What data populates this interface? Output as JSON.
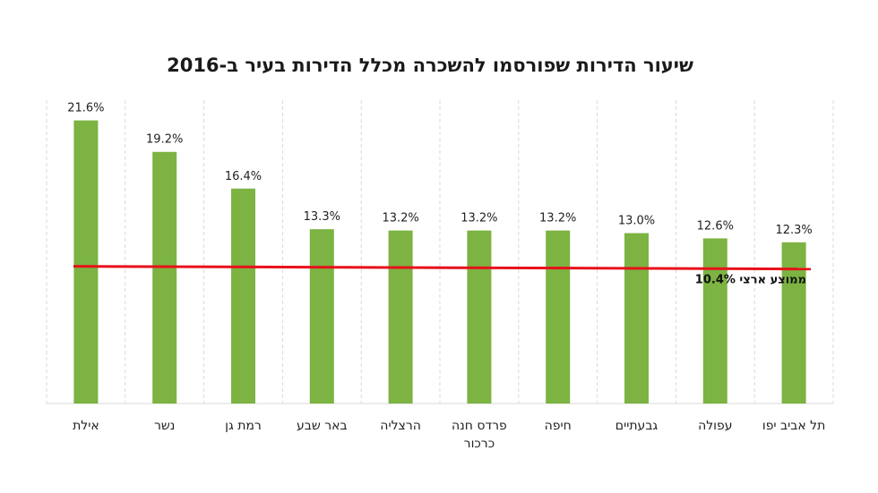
{
  "chart_data": {
    "type": "bar",
    "title": "שיעור הדירות שפורסמו להשכרה מכלל הדירות בעיר ב-2016",
    "categories": [
      "אילת",
      "נשר",
      "רמת גן",
      "באר שבע",
      "הרצליה",
      "פרדס חנה כרכור",
      "חיפה",
      "גבעתיים",
      "עפולה",
      "תל אביב יפו"
    ],
    "category_lines": [
      [
        "אילת"
      ],
      [
        "נשר"
      ],
      [
        "רמת גן"
      ],
      [
        "באר שבע"
      ],
      [
        "הרצליה"
      ],
      [
        "פרדס חנה",
        "כרכור"
      ],
      [
        "חיפה"
      ],
      [
        "גבעתיים"
      ],
      [
        "עפולה"
      ],
      [
        "תל אביב יפו"
      ]
    ],
    "values": [
      21.6,
      19.2,
      16.4,
      13.3,
      13.2,
      13.2,
      13.2,
      13.0,
      12.6,
      12.3
    ],
    "value_labels": [
      "21.6%",
      "19.2%",
      "16.4%",
      "13.3%",
      "13.2%",
      "13.2%",
      "13.2%",
      "13.0%",
      "12.6%",
      "12.3%"
    ],
    "reference_line": {
      "value": 10.4,
      "label": "ממוצע ארצי 10.4%",
      "color": "#e8101a"
    },
    "ylim": [
      0,
      22.8
    ],
    "bar_color": "#7cb342",
    "grid": "vertical dashed",
    "xlabel": "",
    "ylabel": ""
  }
}
